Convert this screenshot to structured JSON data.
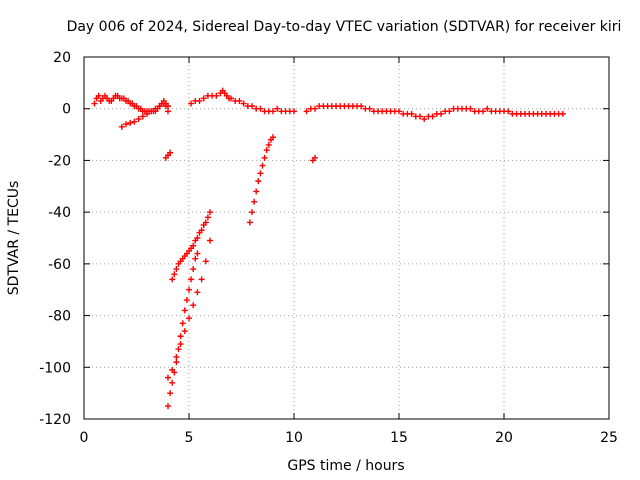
{
  "chart_data": {
    "type": "scatter",
    "title": "Day 006 of 2024, Sidereal Day-to-day VTEC variation (SDTVAR) for receiver kiri",
    "xlabel": "GPS time / hours",
    "ylabel": "SDTVAR / TECUs",
    "xlim": [
      0,
      25
    ],
    "ylim": [
      -120,
      20
    ],
    "x_ticks": [
      0,
      5,
      10,
      15,
      20,
      25
    ],
    "y_ticks": [
      -120,
      -100,
      -80,
      -60,
      -40,
      -20,
      0,
      20
    ],
    "grid": true,
    "legend": "none",
    "marker": "plus",
    "color": "#ff0000",
    "series": [
      {
        "values": [
          [
            0.5,
            2
          ],
          [
            0.6,
            4
          ],
          [
            0.7,
            5
          ],
          [
            0.8,
            3
          ],
          [
            0.9,
            4
          ],
          [
            1.0,
            5
          ],
          [
            1.1,
            4
          ],
          [
            1.2,
            3
          ],
          [
            1.3,
            3
          ],
          [
            1.4,
            4
          ],
          [
            1.5,
            5
          ],
          [
            1.6,
            5
          ],
          [
            1.7,
            4
          ],
          [
            1.8,
            4
          ],
          [
            1.9,
            4
          ],
          [
            2.0,
            3
          ],
          [
            2.1,
            3
          ],
          [
            2.2,
            2
          ],
          [
            2.3,
            2
          ],
          [
            2.4,
            1
          ],
          [
            2.5,
            1
          ],
          [
            2.6,
            0
          ],
          [
            2.7,
            0
          ],
          [
            2.8,
            -1
          ],
          [
            2.9,
            -1
          ],
          [
            3.0,
            -1
          ],
          [
            3.1,
            -1
          ],
          [
            3.2,
            -1
          ],
          [
            3.3,
            -1
          ],
          [
            3.4,
            -1
          ],
          [
            3.5,
            0
          ],
          [
            3.6,
            1
          ],
          [
            3.7,
            2
          ],
          [
            3.8,
            3
          ],
          [
            3.9,
            2
          ],
          [
            4.0,
            1
          ]
        ]
      },
      {
        "values": [
          [
            1.8,
            -7
          ],
          [
            2.0,
            -6
          ],
          [
            2.2,
            -5.5
          ],
          [
            2.4,
            -5
          ],
          [
            2.6,
            -4
          ],
          [
            2.8,
            -3
          ],
          [
            3.0,
            -2
          ],
          [
            3.2,
            -1
          ],
          [
            3.4,
            0
          ],
          [
            3.6,
            1
          ],
          [
            3.7,
            2
          ],
          [
            3.8,
            2
          ],
          [
            3.9,
            1
          ],
          [
            4.0,
            -1
          ]
        ]
      },
      {
        "values": [
          [
            3.9,
            -19
          ],
          [
            4.0,
            -18
          ],
          [
            4.1,
            -17
          ]
        ]
      },
      {
        "values": [
          [
            4.2,
            -66
          ],
          [
            4.3,
            -64
          ],
          [
            4.4,
            -62
          ],
          [
            4.5,
            -60
          ],
          [
            4.6,
            -59
          ],
          [
            4.7,
            -58
          ],
          [
            4.8,
            -57
          ],
          [
            4.9,
            -56
          ],
          [
            5.0,
            -55
          ],
          [
            5.1,
            -54
          ],
          [
            5.2,
            -53
          ],
          [
            5.3,
            -51
          ],
          [
            5.4,
            -50
          ],
          [
            5.5,
            -48
          ],
          [
            5.6,
            -47
          ],
          [
            5.7,
            -45
          ],
          [
            5.8,
            -44
          ],
          [
            5.9,
            -42
          ],
          [
            6.0,
            -40
          ]
        ]
      },
      {
        "values": [
          [
            4.0,
            -115
          ],
          [
            4.1,
            -110
          ],
          [
            4.2,
            -106
          ],
          [
            4.3,
            -102
          ],
          [
            4.4,
            -98
          ],
          [
            4.5,
            -93
          ],
          [
            4.6,
            -88
          ],
          [
            4.7,
            -83
          ],
          [
            4.8,
            -78
          ],
          [
            4.9,
            -74
          ],
          [
            5.0,
            -70
          ],
          [
            5.1,
            -66
          ],
          [
            5.2,
            -62
          ],
          [
            5.3,
            -58
          ],
          [
            5.4,
            -56
          ]
        ]
      },
      {
        "values": [
          [
            4.0,
            -104
          ],
          [
            4.2,
            -101
          ],
          [
            4.4,
            -96
          ],
          [
            4.6,
            -91
          ],
          [
            4.8,
            -86
          ],
          [
            5.0,
            -81
          ],
          [
            5.2,
            -76
          ],
          [
            5.4,
            -71
          ],
          [
            5.6,
            -66
          ],
          [
            5.8,
            -59
          ],
          [
            6.0,
            -51
          ]
        ]
      },
      {
        "values": [
          [
            5.1,
            2
          ],
          [
            5.3,
            3
          ],
          [
            5.5,
            3
          ],
          [
            5.7,
            4
          ],
          [
            5.9,
            5
          ],
          [
            6.1,
            5
          ],
          [
            6.3,
            5
          ],
          [
            6.5,
            6
          ],
          [
            6.6,
            7
          ],
          [
            6.7,
            6
          ],
          [
            6.8,
            5
          ],
          [
            6.9,
            4
          ],
          [
            7.0,
            4
          ],
          [
            7.2,
            3
          ],
          [
            7.4,
            3
          ],
          [
            7.6,
            2
          ],
          [
            7.8,
            1
          ],
          [
            8.0,
            1
          ],
          [
            8.2,
            0
          ],
          [
            8.4,
            0
          ],
          [
            8.6,
            -1
          ],
          [
            8.8,
            -1
          ],
          [
            9.0,
            -1
          ],
          [
            9.2,
            0
          ],
          [
            9.4,
            -1
          ],
          [
            9.6,
            -1
          ],
          [
            9.8,
            -1
          ],
          [
            10.0,
            -1
          ]
        ]
      },
      {
        "values": [
          [
            7.9,
            -44
          ],
          [
            8.0,
            -40
          ],
          [
            8.1,
            -36
          ],
          [
            8.2,
            -32
          ],
          [
            8.3,
            -28
          ],
          [
            8.4,
            -25
          ],
          [
            8.5,
            -22
          ],
          [
            8.6,
            -19
          ],
          [
            8.7,
            -16
          ],
          [
            8.8,
            -14
          ],
          [
            8.9,
            -12
          ],
          [
            9.0,
            -11
          ]
        ]
      },
      {
        "values": [
          [
            10.9,
            -20
          ],
          [
            11.0,
            -19
          ]
        ]
      },
      {
        "values": [
          [
            10.6,
            -1
          ],
          [
            10.8,
            0
          ],
          [
            11.0,
            0
          ],
          [
            11.2,
            1
          ],
          [
            11.4,
            1
          ],
          [
            11.6,
            1
          ],
          [
            11.8,
            1
          ],
          [
            12.0,
            1
          ],
          [
            12.2,
            1
          ],
          [
            12.4,
            1
          ],
          [
            12.6,
            1
          ],
          [
            12.8,
            1
          ],
          [
            13.0,
            1
          ],
          [
            13.2,
            1
          ],
          [
            13.4,
            0
          ],
          [
            13.6,
            0
          ],
          [
            13.8,
            -1
          ],
          [
            14.0,
            -1
          ],
          [
            14.2,
            -1
          ],
          [
            14.4,
            -1
          ],
          [
            14.6,
            -1
          ],
          [
            14.8,
            -1
          ],
          [
            15.0,
            -1
          ],
          [
            15.2,
            -2
          ],
          [
            15.4,
            -2
          ],
          [
            15.6,
            -2
          ],
          [
            15.8,
            -3
          ],
          [
            16.0,
            -3
          ],
          [
            16.2,
            -4
          ],
          [
            16.4,
            -3
          ],
          [
            16.6,
            -3
          ],
          [
            16.8,
            -2
          ],
          [
            17.0,
            -2
          ],
          [
            17.2,
            -1
          ],
          [
            17.4,
            -1
          ],
          [
            17.6,
            0
          ],
          [
            17.8,
            0
          ],
          [
            18.0,
            0
          ],
          [
            18.2,
            0
          ],
          [
            18.4,
            0
          ],
          [
            18.6,
            -1
          ],
          [
            18.8,
            -1
          ],
          [
            19.0,
            -1
          ],
          [
            19.2,
            0
          ],
          [
            19.4,
            -1
          ],
          [
            19.6,
            -1
          ],
          [
            19.8,
            -1
          ],
          [
            20.0,
            -1
          ],
          [
            20.2,
            -1
          ],
          [
            20.4,
            -2
          ],
          [
            20.6,
            -2
          ],
          [
            20.8,
            -2
          ],
          [
            21.0,
            -2
          ],
          [
            21.2,
            -2
          ],
          [
            21.4,
            -2
          ],
          [
            21.6,
            -2
          ],
          [
            21.8,
            -2
          ],
          [
            22.0,
            -2
          ],
          [
            22.2,
            -2
          ],
          [
            22.4,
            -2
          ],
          [
            22.6,
            -2
          ],
          [
            22.8,
            -2
          ]
        ]
      }
    ]
  }
}
